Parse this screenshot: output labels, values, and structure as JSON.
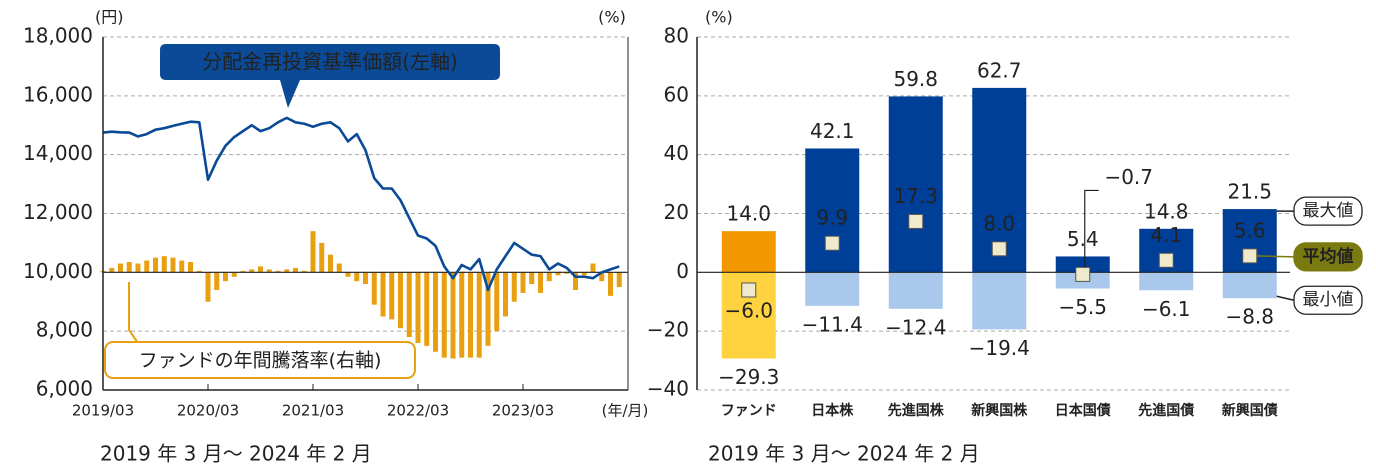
{
  "chart_data": [
    {
      "type": "bar_line",
      "y_unit": "(円)",
      "y2_unit": "(%)",
      "x_unit": "(年/月)",
      "subtitle": "2019 年 3 月〜 2024 年 2 月",
      "categories": [
        "2019/03",
        null,
        null,
        null,
        null,
        null,
        null,
        null,
        null,
        null,
        null,
        null,
        "2020/03",
        null,
        null,
        null,
        null,
        null,
        null,
        null,
        null,
        null,
        null,
        null,
        "2021/03",
        null,
        null,
        null,
        null,
        null,
        null,
        null,
        null,
        null,
        null,
        null,
        "2022/03",
        null,
        null,
        null,
        null,
        null,
        null,
        null,
        null,
        null,
        null,
        null,
        "2023/03",
        null,
        null,
        null,
        null,
        null,
        null,
        null,
        null,
        null,
        null,
        null
      ],
      "series": [
        {
          "name": "分配金再投資基準価額(左軸)",
          "type": "line",
          "color": "#0b4a96",
          "values": [
            14750,
            14780,
            14760,
            14750,
            14620,
            14700,
            14850,
            14900,
            14980,
            15050,
            15120,
            15100,
            13150,
            13800,
            14300,
            14600,
            14800,
            15000,
            14800,
            14900,
            15100,
            15250,
            15100,
            15050,
            14950,
            15050,
            15100,
            14900,
            14450,
            14700,
            14150,
            13200,
            12850,
            12850,
            12450,
            11850,
            11250,
            11150,
            10900,
            10200,
            9800,
            10250,
            10100,
            10450,
            9400,
            10100,
            10550,
            11000,
            10800,
            10600,
            10550,
            10100,
            10300,
            10150,
            9850,
            9850,
            9800,
            10000,
            10100,
            10200
          ]
        },
        {
          "name": "ファンドの年間騰落率(右軸)",
          "type": "bar",
          "axis": "y2",
          "color": "#e8a010",
          "values": [
            0.5,
            1.5,
            3,
            3.5,
            3,
            4,
            5,
            5.5,
            5,
            4,
            3.5,
            0.5,
            -10,
            -6,
            -3,
            -1.5,
            0.5,
            1,
            2,
            1,
            0.5,
            1,
            1.5,
            0.5,
            14,
            10,
            6,
            3,
            -1.5,
            -3,
            -4,
            -11,
            -15,
            -16,
            -19,
            -22,
            -24,
            -25,
            -27,
            -29,
            -29.3,
            -29,
            -29,
            -29,
            -25,
            -20,
            -15,
            -10,
            -7,
            -4,
            -7,
            -3,
            -1,
            -0.5,
            -6,
            -1,
            3,
            -3,
            -8,
            -5
          ]
        }
      ],
      "ylim": [
        6000,
        18000
      ],
      "yticks": [
        {
          "value": 6000,
          "label": "6,000"
        },
        {
          "value": 8000,
          "label": "8,000"
        },
        {
          "value": 10000,
          "label": "10,000"
        },
        {
          "value": 12000,
          "label": "12,000"
        },
        {
          "value": 14000,
          "label": "14,000"
        },
        {
          "value": 16000,
          "label": "16,000"
        },
        {
          "value": 18000,
          "label": "18,000"
        }
      ],
      "y2lim": [
        -40,
        80
      ],
      "grid": true
    },
    {
      "type": "range_bar",
      "y_unit": "(%)",
      "subtitle": "2019 年 3 月〜 2024 年 2 月",
      "categories": [
        "ファンド",
        "日本株",
        "先進国株",
        "新興国株",
        "日本国債",
        "先進国債",
        "新興国債"
      ],
      "series": [
        {
          "name": "最大値",
          "values": [
            14.0,
            42.1,
            59.8,
            62.7,
            5.4,
            14.8,
            21.5
          ],
          "value_labels": [
            "14.0",
            "42.1",
            "59.8",
            "62.7",
            "5.4",
            "14.8",
            "21.5"
          ],
          "colors": [
            "#f39800",
            "#003f98",
            "#003f98",
            "#003f98",
            "#003f98",
            "#003f98",
            "#003f98"
          ]
        },
        {
          "name": "最小値",
          "values": [
            -29.3,
            -11.4,
            -12.4,
            -19.4,
            -5.5,
            -6.1,
            -8.8
          ],
          "value_labels": [
            "−29.3",
            "−11.4",
            "−12.4",
            "−19.4",
            "−5.5",
            "−6.1",
            "−8.8"
          ],
          "colors": [
            "#ffd23f",
            "#a9c8ec",
            "#a9c8ec",
            "#a9c8ec",
            "#a9c8ec",
            "#a9c8ec",
            "#a9c8ec"
          ]
        },
        {
          "name": "平均値",
          "type": "marker",
          "values": [
            -6.0,
            9.9,
            17.3,
            8.0,
            -0.7,
            4.1,
            5.6
          ],
          "value_labels": [
            "−6.0",
            "9.9",
            "17.3",
            "8.0",
            "−0.7",
            "4.1",
            "5.6"
          ],
          "color": "#eeeacb",
          "legend_color": "#7a7a10"
        }
      ],
      "ylim": [
        -40,
        80
      ],
      "yticks": [
        {
          "value": -40,
          "label": "−40"
        },
        {
          "value": -20,
          "label": "−20"
        },
        0,
        20,
        40,
        60,
        80
      ],
      "grid": true
    }
  ]
}
